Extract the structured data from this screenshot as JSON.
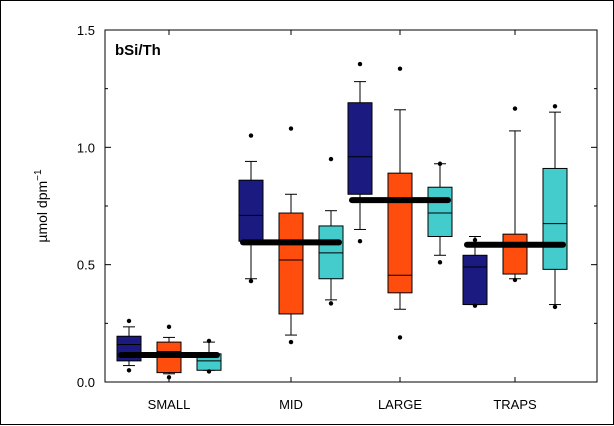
{
  "chart_data": {
    "type": "box",
    "title": "bSi/Th",
    "ylabel": "µmol dpm",
    "ylabel_exponent": "−1",
    "xlabel": "",
    "ylim": [
      0.0,
      1.5
    ],
    "yticks": [
      "0.0",
      "0.5",
      "1.0",
      "1.5"
    ],
    "ytick_values": [
      0.0,
      0.5,
      1.0,
      1.5
    ],
    "categories": [
      "SMALL",
      "MID",
      "LARGE",
      "TRAPS"
    ],
    "series_colors": [
      "#1a1a80",
      "#ff4d0d",
      "#44cccc"
    ],
    "mean_line_color": "#000000",
    "groups": [
      {
        "category": "SMALL",
        "mean": 0.115,
        "boxes": [
          {
            "q1": 0.09,
            "median": 0.16,
            "q3": 0.195,
            "whisker_low": 0.07,
            "whisker_high": 0.235,
            "outliers": [
              0.05,
              0.26
            ]
          },
          {
            "q1": 0.04,
            "median": 0.13,
            "q3": 0.17,
            "whisker_low": 0.035,
            "whisker_high": 0.19,
            "outliers": [
              0.02,
              0.235
            ]
          },
          {
            "q1": 0.05,
            "median": 0.09,
            "q3": 0.12,
            "whisker_low": 0.05,
            "whisker_high": 0.17,
            "outliers": [
              0.045,
              0.175
            ]
          }
        ]
      },
      {
        "category": "MID",
        "mean": 0.595,
        "boxes": [
          {
            "q1": 0.6,
            "median": 0.71,
            "q3": 0.86,
            "whisker_low": 0.44,
            "whisker_high": 0.94,
            "outliers": [
              0.43,
              1.05
            ]
          },
          {
            "q1": 0.29,
            "median": 0.52,
            "q3": 0.72,
            "whisker_low": 0.2,
            "whisker_high": 0.8,
            "outliers": [
              0.17,
              1.08
            ]
          },
          {
            "q1": 0.44,
            "median": 0.55,
            "q3": 0.665,
            "whisker_low": 0.35,
            "whisker_high": 0.73,
            "outliers": [
              0.335,
              0.95
            ]
          }
        ]
      },
      {
        "category": "LARGE",
        "mean": 0.775,
        "boxes": [
          {
            "q1": 0.8,
            "median": 0.96,
            "q3": 1.19,
            "whisker_low": 0.65,
            "whisker_high": 1.28,
            "outliers": [
              0.6,
              1.355
            ]
          },
          {
            "q1": 0.38,
            "median": 0.455,
            "q3": 0.89,
            "whisker_low": 0.31,
            "whisker_high": 1.16,
            "outliers": [
              0.19,
              1.335
            ]
          },
          {
            "q1": 0.62,
            "median": 0.72,
            "q3": 0.83,
            "whisker_low": 0.54,
            "whisker_high": 0.93,
            "outliers": [
              0.51,
              0.93
            ]
          }
        ]
      },
      {
        "category": "TRAPS",
        "mean": 0.585,
        "boxes": [
          {
            "q1": 0.33,
            "median": 0.49,
            "q3": 0.54,
            "whisker_low": 0.33,
            "whisker_high": 0.62,
            "outliers": [
              0.325,
              0.605
            ]
          },
          {
            "q1": 0.46,
            "median": 0.59,
            "q3": 0.63,
            "whisker_low": 0.44,
            "whisker_high": 1.07,
            "outliers": [
              0.435,
              1.165
            ]
          },
          {
            "q1": 0.48,
            "median": 0.675,
            "q3": 0.91,
            "whisker_low": 0.33,
            "whisker_high": 1.15,
            "outliers": [
              0.32,
              1.175
            ]
          }
        ]
      }
    ]
  }
}
